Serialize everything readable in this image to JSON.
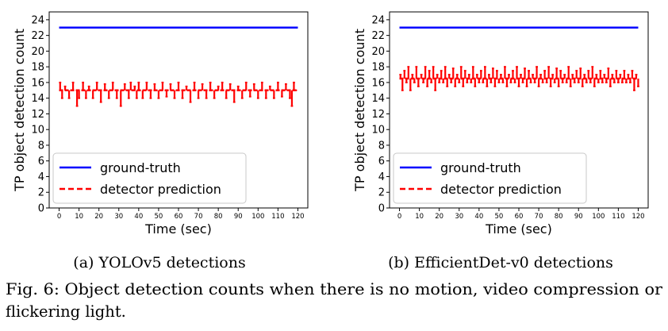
{
  "figure": {
    "caption_line1": "Fig. 6: Object detection counts when there is no motion, video compression or",
    "caption_line2": "flickering light."
  },
  "chart_data": [
    {
      "type": "line",
      "subcaption": "(a) YOLOv5 detections",
      "xlabel": "Time (sec)",
      "ylabel": "TP object detection count",
      "xlim": [
        -5,
        125
      ],
      "ylim": [
        0,
        25
      ],
      "xticks": [
        0,
        10,
        20,
        30,
        40,
        50,
        60,
        70,
        80,
        90,
        100,
        110,
        120
      ],
      "yticks": [
        0,
        2,
        4,
        6,
        8,
        10,
        12,
        14,
        16,
        18,
        20,
        22,
        24
      ],
      "grid": false,
      "legend_position": "lower-left",
      "series": [
        {
          "name": "ground-truth",
          "color": "#0000ff",
          "style": "solid",
          "x": [
            0,
            120
          ],
          "values": [
            23,
            23
          ]
        },
        {
          "name": "detector prediction",
          "color": "#ff0000",
          "style": "dashed",
          "baseline": 15,
          "x": [
            0,
            120
          ],
          "values": [
            15,
            15
          ],
          "spikes": [
            [
              0.5,
              16
            ],
            [
              1.5,
              14
            ],
            [
              3,
              15.5
            ],
            [
              5,
              14
            ],
            [
              7,
              16
            ],
            [
              9,
              13
            ],
            [
              10,
              14
            ],
            [
              12,
              16
            ],
            [
              13.5,
              14
            ],
            [
              15,
              15.5
            ],
            [
              17,
              14
            ],
            [
              19,
              16
            ],
            [
              21,
              13.5
            ],
            [
              23,
              15.8
            ],
            [
              25,
              14
            ],
            [
              27,
              16
            ],
            [
              29,
              14
            ],
            [
              31,
              13
            ],
            [
              33,
              15.8
            ],
            [
              35,
              14
            ],
            [
              36,
              16
            ],
            [
              38,
              15.5
            ],
            [
              39,
              14
            ],
            [
              40,
              16
            ],
            [
              42,
              14
            ],
            [
              44,
              16
            ],
            [
              46,
              14
            ],
            [
              48,
              15.8
            ],
            [
              50,
              14
            ],
            [
              52,
              16
            ],
            [
              54,
              14.2
            ],
            [
              56,
              15.8
            ],
            [
              58,
              14
            ],
            [
              60,
              16
            ],
            [
              62,
              14
            ],
            [
              64,
              15.5
            ],
            [
              66,
              13.5
            ],
            [
              68,
              16
            ],
            [
              70,
              14
            ],
            [
              72,
              15.8
            ],
            [
              74,
              14
            ],
            [
              76,
              16
            ],
            [
              78,
              14
            ],
            [
              80,
              15.5
            ],
            [
              82,
              16
            ],
            [
              84,
              14
            ],
            [
              86,
              15.8
            ],
            [
              88,
              13.5
            ],
            [
              90,
              15.5
            ],
            [
              92,
              14
            ],
            [
              94,
              16
            ],
            [
              96,
              14.2
            ],
            [
              98,
              15.8
            ],
            [
              100,
              14
            ],
            [
              102,
              16
            ],
            [
              104,
              14
            ],
            [
              106,
              15.5
            ],
            [
              108,
              14
            ],
            [
              110,
              16
            ],
            [
              112,
              14.2
            ],
            [
              114,
              15.8
            ],
            [
              116,
              14
            ],
            [
              117,
              13
            ],
            [
              118,
              16
            ],
            [
              119,
              15
            ]
          ]
        }
      ]
    },
    {
      "type": "line",
      "subcaption": "(b) EfficientDet-v0 detections",
      "xlabel": "Time (sec)",
      "ylabel": "TP object detection count",
      "xlim": [
        -5,
        125
      ],
      "ylim": [
        0,
        25
      ],
      "xticks": [
        0,
        10,
        20,
        30,
        40,
        50,
        60,
        70,
        80,
        90,
        100,
        110,
        120
      ],
      "yticks": [
        0,
        2,
        4,
        6,
        8,
        10,
        12,
        14,
        16,
        18,
        20,
        22,
        24
      ],
      "grid": false,
      "legend_position": "lower-left",
      "series": [
        {
          "name": "ground-truth",
          "color": "#0000ff",
          "style": "solid",
          "x": [
            0,
            120
          ],
          "values": [
            23,
            23
          ]
        },
        {
          "name": "detector prediction",
          "color": "#ff0000",
          "style": "dashed",
          "baseline": 16.5,
          "x": [
            0,
            120
          ],
          "values": [
            16.5,
            16.5
          ],
          "spikes": [
            [
              0.5,
              17
            ],
            [
              1.5,
              15
            ],
            [
              2.5,
              17.5
            ],
            [
              3.5,
              16
            ],
            [
              4.5,
              18
            ],
            [
              5.5,
              15
            ],
            [
              6.5,
              17
            ],
            [
              7.5,
              16
            ],
            [
              8.5,
              18
            ],
            [
              9.5,
              15.5
            ],
            [
              11,
              17
            ],
            [
              12,
              16
            ],
            [
              13,
              18
            ],
            [
              14,
              15.5
            ],
            [
              15,
              17.5
            ],
            [
              16,
              16
            ],
            [
              17,
              18
            ],
            [
              18,
              15
            ],
            [
              19,
              17
            ],
            [
              20,
              16
            ],
            [
              21,
              17.5
            ],
            [
              22,
              16
            ],
            [
              23,
              18
            ],
            [
              24,
              15.5
            ],
            [
              25,
              17
            ],
            [
              26,
              16
            ],
            [
              27,
              17.8
            ],
            [
              28,
              15.5
            ],
            [
              29,
              17
            ],
            [
              30,
              16
            ],
            [
              31,
              18
            ],
            [
              32,
              15.5
            ],
            [
              33,
              17.5
            ],
            [
              34,
              16
            ],
            [
              35,
              17
            ],
            [
              36,
              16
            ],
            [
              37,
              18
            ],
            [
              38,
              15.5
            ],
            [
              39,
              17
            ],
            [
              40,
              16
            ],
            [
              41,
              17.5
            ],
            [
              42,
              16
            ],
            [
              43,
              18
            ],
            [
              44,
              15.5
            ],
            [
              45,
              17
            ],
            [
              46,
              16
            ],
            [
              47,
              17.8
            ],
            [
              48,
              15.5
            ],
            [
              49,
              17.5
            ],
            [
              50,
              16
            ],
            [
              51,
              17
            ],
            [
              52,
              16
            ],
            [
              53,
              18
            ],
            [
              54,
              15.5
            ],
            [
              55,
              17
            ],
            [
              56,
              16
            ],
            [
              57,
              17.5
            ],
            [
              58,
              16
            ],
            [
              59,
              18
            ],
            [
              60,
              15.5
            ],
            [
              61,
              17
            ],
            [
              62,
              16
            ],
            [
              63,
              17.8
            ],
            [
              64,
              15.5
            ],
            [
              65,
              17.5
            ],
            [
              66,
              16
            ],
            [
              67,
              17
            ],
            [
              68,
              16
            ],
            [
              69,
              18
            ],
            [
              70,
              15.5
            ],
            [
              71,
              17
            ],
            [
              72,
              16
            ],
            [
              73,
              17.5
            ],
            [
              74,
              16
            ],
            [
              75,
              18
            ],
            [
              76,
              15.5
            ],
            [
              77,
              17
            ],
            [
              78,
              16
            ],
            [
              79,
              17.8
            ],
            [
              80,
              15.5
            ],
            [
              81,
              17.5
            ],
            [
              82,
              16
            ],
            [
              83,
              17
            ],
            [
              84,
              16
            ],
            [
              85,
              18
            ],
            [
              86,
              15.5
            ],
            [
              87,
              17
            ],
            [
              88,
              16
            ],
            [
              89,
              17.5
            ],
            [
              90,
              16
            ],
            [
              91,
              17.8
            ],
            [
              92,
              15.5
            ],
            [
              93,
              17
            ],
            [
              94,
              16
            ],
            [
              95,
              17.5
            ],
            [
              96,
              16
            ],
            [
              97,
              18
            ],
            [
              98,
              15.5
            ],
            [
              99,
              17
            ],
            [
              100,
              16
            ],
            [
              101,
              17.5
            ],
            [
              102,
              16
            ],
            [
              103,
              17
            ],
            [
              104,
              16
            ],
            [
              105,
              17.8
            ],
            [
              106,
              15.5
            ],
            [
              107,
              17
            ],
            [
              108,
              16
            ],
            [
              109,
              17.5
            ],
            [
              110,
              16
            ],
            [
              111,
              17
            ],
            [
              112,
              16
            ],
            [
              113,
              17.5
            ],
            [
              114,
              16
            ],
            [
              115,
              17
            ],
            [
              116,
              16
            ],
            [
              117,
              17.5
            ],
            [
              118,
              15
            ],
            [
              119,
              17
            ],
            [
              120,
              15.5
            ]
          ]
        }
      ]
    }
  ]
}
